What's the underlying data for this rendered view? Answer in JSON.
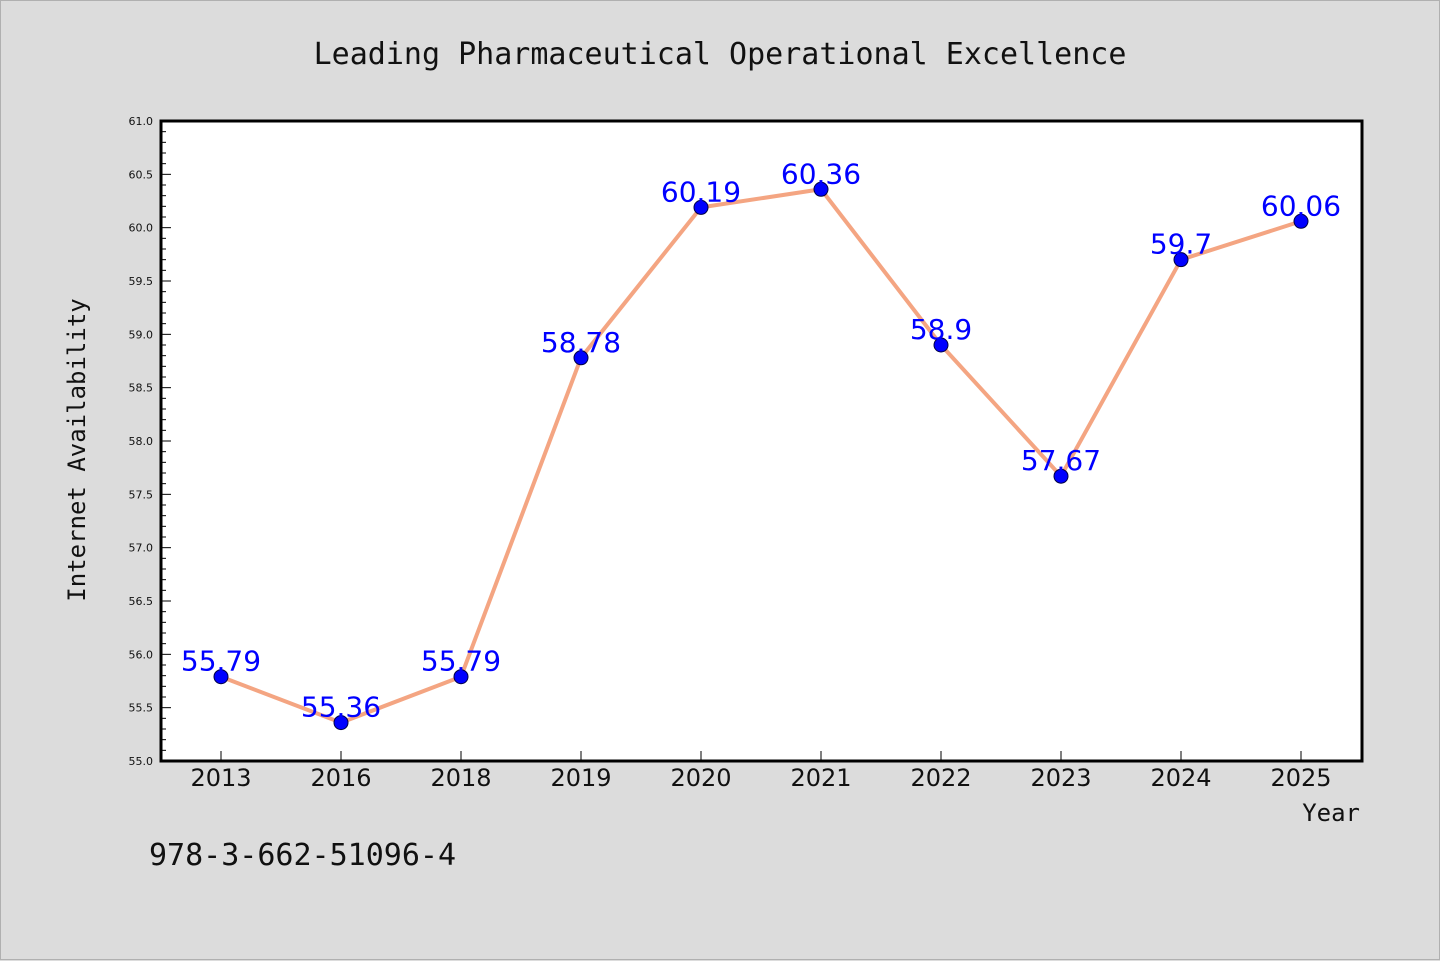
{
  "chart_data": {
    "type": "line",
    "title": "Leading Pharmaceutical Operational Excellence",
    "xlabel": "Year",
    "ylabel": "Internet Availability",
    "categories": [
      "2013",
      "2016",
      "2018",
      "2019",
      "2020",
      "2021",
      "2022",
      "2023",
      "2024",
      "2025"
    ],
    "values": [
      55.79,
      55.36,
      55.79,
      58.78,
      60.19,
      60.36,
      58.9,
      57.67,
      59.7,
      60.06
    ],
    "data_labels": [
      "55.79",
      "55.36",
      "55.79",
      "58.78",
      "60.19",
      "60.36",
      "58.9",
      "57.67",
      "59.7",
      "60.06"
    ],
    "ylim": [
      55.0,
      61.0
    ],
    "yticks": [
      "55.0",
      "55.5",
      "56.0",
      "56.5",
      "57.0",
      "57.5",
      "58.0",
      "58.5",
      "59.0",
      "59.5",
      "60.0",
      "60.5",
      "61.0"
    ],
    "grid": false,
    "legend": "none",
    "colors": {
      "line": "#f4a582",
      "marker": "#0000ff",
      "data_label": "#0000ff",
      "plot_background": "#ffffff",
      "page_background": "#dcdcdc"
    }
  },
  "footer": {
    "isbn": "978-3-662-51096-4"
  }
}
